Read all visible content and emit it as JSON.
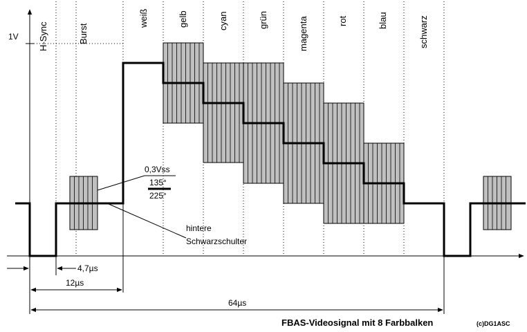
{
  "bars": [
    {
      "id": "h-sync",
      "label": "H-Sync"
    },
    {
      "id": "burst",
      "label": "Burst"
    },
    {
      "id": "weiss",
      "label": "weiß"
    },
    {
      "id": "gelb",
      "label": "gelb"
    },
    {
      "id": "cyan",
      "label": "cyan"
    },
    {
      "id": "gruen",
      "label": "grün"
    },
    {
      "id": "magenta",
      "label": "magenta"
    },
    {
      "id": "rot",
      "label": "rot"
    },
    {
      "id": "blau",
      "label": "blau"
    },
    {
      "id": "schwarz",
      "label": "schwarz"
    }
  ],
  "y_axis_label": "1V",
  "annotations": {
    "amplitude": "0,3Vss",
    "phase_top": "135°",
    "phase_bottom": "225°",
    "back_porch_line1": "hintere",
    "back_porch_line2": "Schwarzschulter"
  },
  "timings": {
    "sync_width": "4,7µs",
    "to_active": "12µs",
    "line_period": "64µs"
  },
  "title": "FBAS-Videosignal mit 8 Farbbalken",
  "credit": "(c)DG1ASC",
  "colors": {
    "line": "#000000",
    "chroma_fill": "#c0c0c0"
  }
}
